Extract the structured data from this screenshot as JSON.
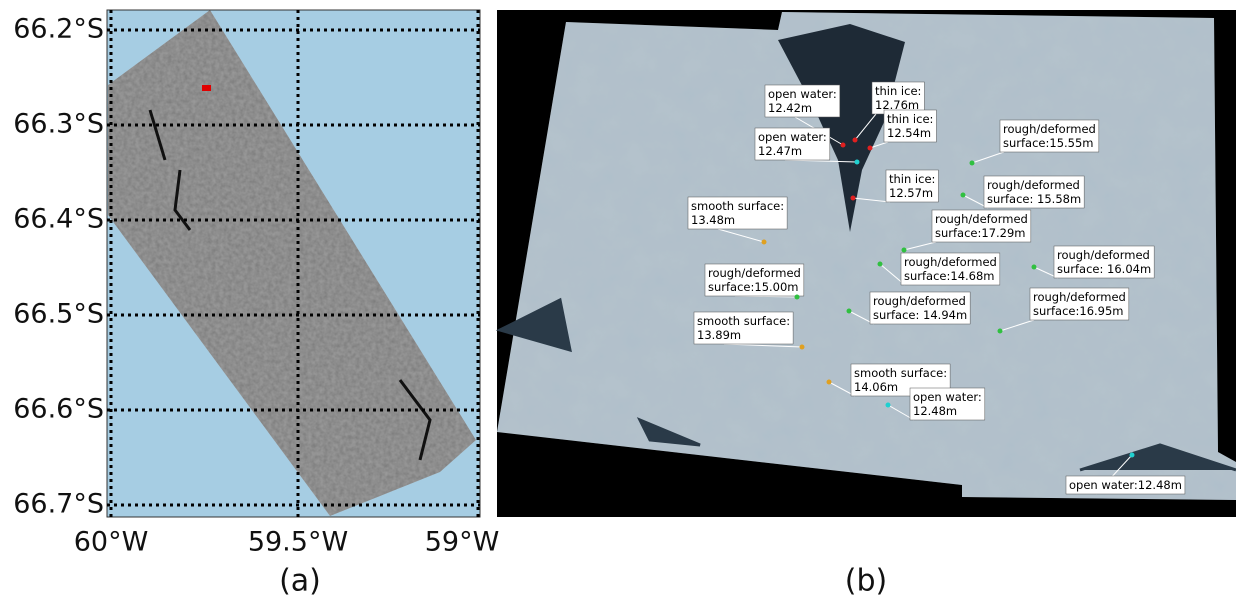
{
  "panel_a": {
    "label": "(a)",
    "lat_labels": [
      "66.2°S",
      "66.3°S",
      "66.4°S",
      "66.5°S",
      "66.6°S",
      "66.7°S"
    ],
    "lon_labels": [
      "60°W",
      "59.5°W",
      "59°W"
    ]
  },
  "panel_b": {
    "label": "(b)",
    "annotations": [
      {
        "lines": [
          "open water:",
          "12.42m"
        ],
        "color": "#e02020"
      },
      {
        "lines": [
          "thin ice:",
          "12.76m"
        ],
        "color": "#e02020"
      },
      {
        "lines": [
          "thin ice:",
          "12.54m"
        ],
        "color": "#e02020"
      },
      {
        "lines": [
          "open water:",
          "12.47m"
        ],
        "color": "#20d0d0"
      },
      {
        "lines": [
          "thin ice:",
          "12.57m"
        ],
        "color": "#e02020"
      },
      {
        "lines": [
          "smooth surface:",
          "13.48m"
        ],
        "color": "#e0a020"
      },
      {
        "lines": [
          "rough/deformed",
          "surface:15.55m"
        ],
        "color": "#30c040"
      },
      {
        "lines": [
          "rough/deformed",
          "surface: 15.58m"
        ],
        "color": "#30c040"
      },
      {
        "lines": [
          "rough/deformed",
          "surface:17.29m"
        ],
        "color": "#30c040"
      },
      {
        "lines": [
          "rough/deformed",
          "surface:14.68m"
        ],
        "color": "#30c040"
      },
      {
        "lines": [
          "rough/deformed",
          "surface: 16.04m"
        ],
        "color": "#30c040"
      },
      {
        "lines": [
          "rough/deformed",
          "surface:15.00m"
        ],
        "color": "#30c040"
      },
      {
        "lines": [
          "rough/deformed",
          "surface: 14.94m"
        ],
        "color": "#30c040"
      },
      {
        "lines": [
          "rough/deformed",
          "surface:16.95m"
        ],
        "color": "#30c040"
      },
      {
        "lines": [
          "smooth surface:",
          "13.89m"
        ],
        "color": "#e0a020"
      },
      {
        "lines": [
          "smooth surface:",
          "14.06m"
        ],
        "color": "#e0a020"
      },
      {
        "lines": [
          "open water:",
          "12.48m"
        ],
        "color": "#20d0d0"
      },
      {
        "lines": [
          "open water:12.48m"
        ],
        "color": "#20d0d0"
      }
    ]
  }
}
